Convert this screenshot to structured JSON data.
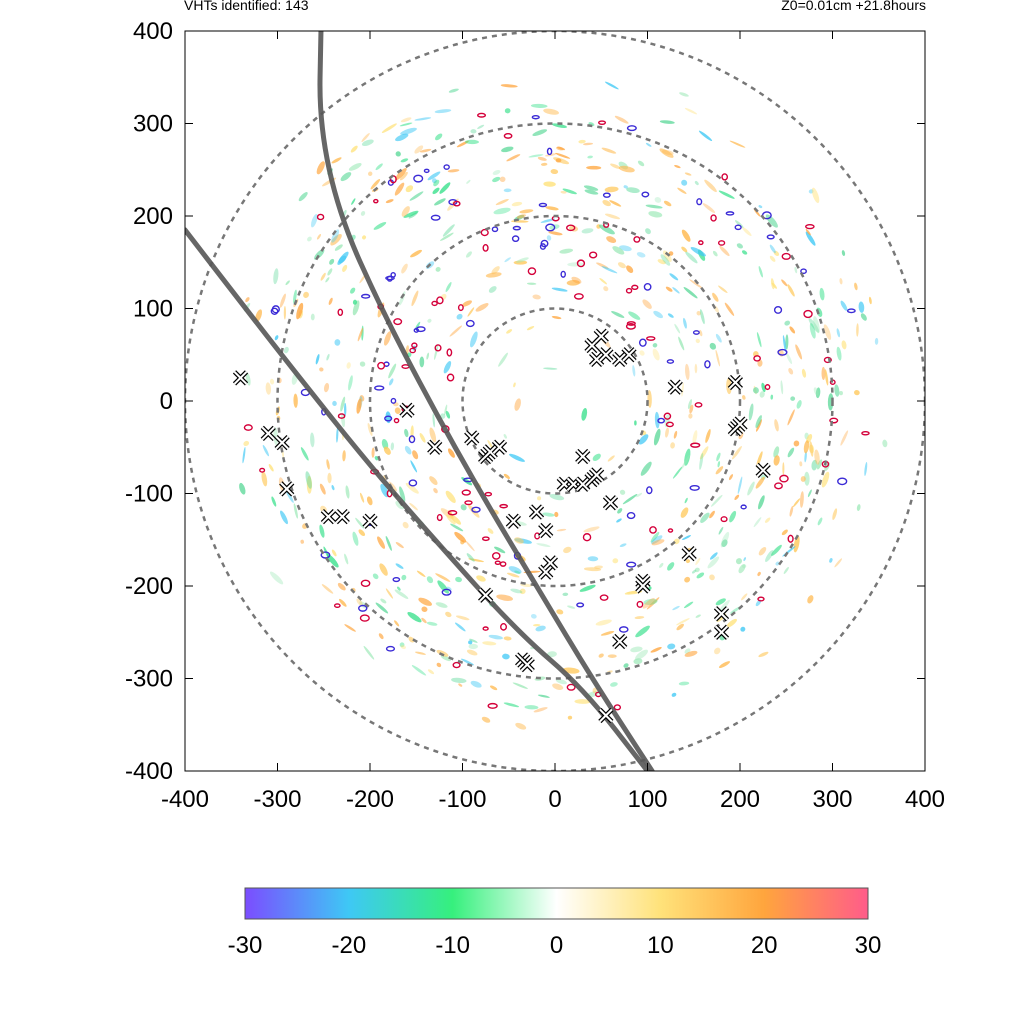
{
  "header": {
    "left": "VHTs identified: 143",
    "right": "Z0=0.01cm  +21.8hours"
  },
  "chart_data": {
    "type": "scatter",
    "xlim": [
      -400,
      400
    ],
    "ylim": [
      -400,
      400
    ],
    "x_ticks": [
      "-400",
      "-300",
      "-200",
      "-100",
      "0",
      "100",
      "200",
      "300",
      "400"
    ],
    "y_ticks": [
      "400",
      "300",
      "200",
      "100",
      "0",
      "-100",
      "-200",
      "-300",
      "-400"
    ],
    "grid": false,
    "range_rings": [
      100,
      200,
      300,
      400
    ],
    "vht_count": 143,
    "vht_markers": [
      [
        -340,
        25
      ],
      [
        -310,
        -35
      ],
      [
        -295,
        -45
      ],
      [
        -290,
        -95
      ],
      [
        -245,
        -125
      ],
      [
        -230,
        -125
      ],
      [
        -200,
        -130
      ],
      [
        -160,
        -10
      ],
      [
        -130,
        -50
      ],
      [
        -90,
        -40
      ],
      [
        -75,
        -60
      ],
      [
        -70,
        -55
      ],
      [
        -60,
        -50
      ],
      [
        -45,
        -130
      ],
      [
        -20,
        -120
      ],
      [
        -10,
        -140
      ],
      [
        -10,
        -185
      ],
      [
        -5,
        -175
      ],
      [
        -75,
        -210
      ],
      [
        -35,
        -280
      ],
      [
        -30,
        -285
      ],
      [
        55,
        -340
      ],
      [
        70,
        -260
      ],
      [
        95,
        -195
      ],
      [
        95,
        -200
      ],
      [
        10,
        -90
      ],
      [
        20,
        -90
      ],
      [
        30,
        -90
      ],
      [
        40,
        -85
      ],
      [
        45,
        -80
      ],
      [
        60,
        -110
      ],
      [
        30,
        -60
      ],
      [
        40,
        60
      ],
      [
        45,
        45
      ],
      [
        50,
        70
      ],
      [
        55,
        50
      ],
      [
        70,
        45
      ],
      [
        80,
        50
      ],
      [
        130,
        15
      ],
      [
        195,
        20
      ],
      [
        195,
        -30
      ],
      [
        200,
        -25
      ],
      [
        225,
        -75
      ],
      [
        145,
        -165
      ],
      [
        180,
        -230
      ],
      [
        180,
        -250
      ]
    ],
    "tracks": [
      {
        "name": "",
        "points": [
          [
            -253,
            400
          ],
          [
            -255,
            300
          ],
          [
            -233,
            200
          ],
          [
            -188,
            100
          ],
          [
            -136,
            0
          ],
          [
            -80,
            -100
          ],
          [
            -20,
            -200
          ],
          [
            40,
            -300
          ],
          [
            105,
            -400
          ]
        ]
      },
      {
        "name": "",
        "points": [
          [
            -400,
            185
          ],
          [
            -350,
            120
          ],
          [
            -280,
            30
          ],
          [
            -200,
            -70
          ],
          [
            -130,
            -150
          ],
          [
            -40,
            -250
          ],
          [
            30,
            -310
          ],
          [
            100,
            -400
          ]
        ]
      }
    ],
    "colorbar": {
      "min": -30,
      "max": 30,
      "ticks": [
        "-30",
        "-20",
        "-10",
        "0",
        "10",
        "20",
        "30"
      ],
      "colors": [
        "#7b4dff",
        "#3ec8f5",
        "#36f07d",
        "#ffffff",
        "#ffe27a",
        "#ffa53d",
        "#ff5c8a"
      ]
    }
  }
}
